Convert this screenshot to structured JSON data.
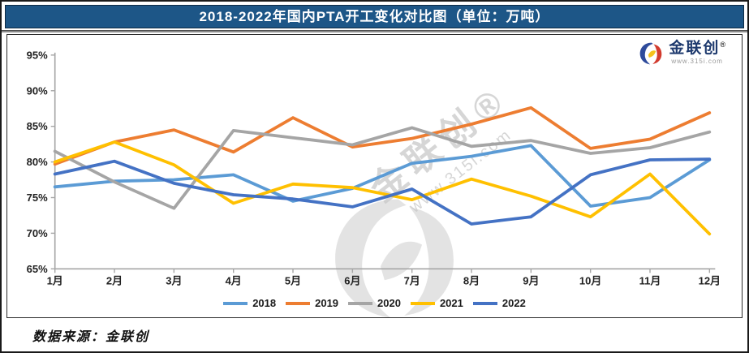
{
  "title": "2018-2022年国内PTA开工变化对比图（单位：万吨）",
  "source_note": "数据来源：金联创",
  "brand": {
    "name": "金联创",
    "reg": "®",
    "url": "www.315i.com"
  },
  "watermark": {
    "name_line": "金联创®",
    "url_line": "www.315i.com"
  },
  "colors": {
    "title_bg": "#1d5687",
    "axis": "#a6a6a6",
    "tick_label": "#222222",
    "watermark": "#bdbdbd"
  },
  "chart_data": {
    "type": "line",
    "title": "2018-2022年国内PTA开工变化对比图（单位：万吨）",
    "categories": [
      "1月",
      "2月",
      "3月",
      "4月",
      "5月",
      "6月",
      "7月",
      "8月",
      "9月",
      "10月",
      "11月",
      "12月"
    ],
    "y_tick_labels": [
      "95%",
      "90%",
      "85%",
      "80%",
      "75%",
      "70%",
      "65%"
    ],
    "ylim": [
      65,
      95
    ],
    "y_step": 5,
    "grid": false,
    "legend_position": "bottom",
    "series": [
      {
        "name": "2018",
        "color": "#5B9BD5",
        "values": [
          76.5,
          77.3,
          77.5,
          78.2,
          74.5,
          76.3,
          79.8,
          80.8,
          82.3,
          73.8,
          75.0,
          80.3
        ]
      },
      {
        "name": "2019",
        "color": "#ED7D31",
        "values": [
          79.7,
          82.8,
          84.5,
          81.4,
          86.2,
          82.1,
          83.3,
          85.3,
          87.6,
          81.9,
          83.2,
          86.9
        ]
      },
      {
        "name": "2020",
        "color": "#A5A5A5",
        "values": [
          81.5,
          77.2,
          73.5,
          84.4,
          83.4,
          82.4,
          84.8,
          82.2,
          83.0,
          81.2,
          82.0,
          84.2
        ]
      },
      {
        "name": "2021",
        "color": "#FFC000",
        "values": [
          80.0,
          82.8,
          79.6,
          74.2,
          76.9,
          76.4,
          74.7,
          77.6,
          75.2,
          72.3,
          78.3,
          69.9
        ]
      },
      {
        "name": "2022",
        "color": "#4472C4",
        "values": [
          78.3,
          80.1,
          77.0,
          75.4,
          74.8,
          73.7,
          76.2,
          71.3,
          72.3,
          78.2,
          80.3,
          80.4
        ]
      }
    ]
  }
}
